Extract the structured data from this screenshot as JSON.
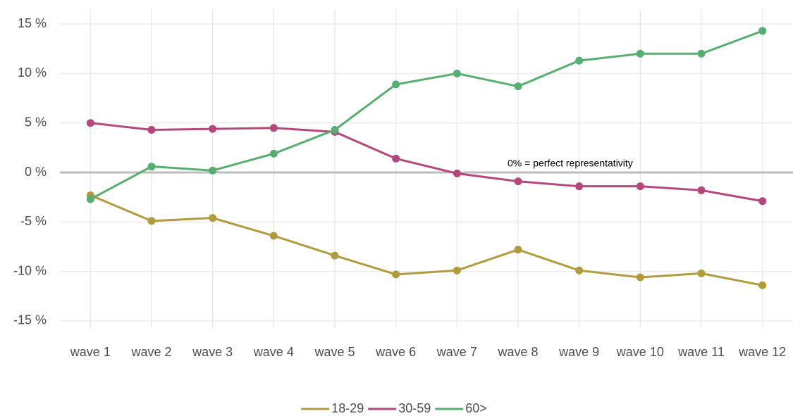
{
  "chart_data": {
    "type": "line",
    "categories": [
      "wave 1",
      "wave 2",
      "wave 3",
      "wave 4",
      "wave 5",
      "wave 6",
      "wave 7",
      "wave 8",
      "wave 9",
      "wave 10",
      "wave 11",
      "wave 12"
    ],
    "series": [
      {
        "name": "18-29",
        "color": "#b19b3d",
        "values": [
          -2.3,
          -4.9,
          -4.6,
          -6.4,
          -8.4,
          -10.3,
          -9.9,
          -7.8,
          -9.9,
          -10.6,
          -10.2,
          -11.4
        ]
      },
      {
        "name": "30-59",
        "color": "#b4477b",
        "values": [
          5.0,
          4.3,
          4.4,
          4.5,
          4.1,
          1.4,
          -0.1,
          -0.9,
          -1.4,
          -1.4,
          -1.8,
          -2.9
        ]
      },
      {
        "name": "60>",
        "color": "#56af71",
        "values": [
          -2.7,
          0.6,
          0.2,
          1.9,
          4.3,
          8.9,
          10.0,
          8.7,
          11.3,
          12.0,
          12.0,
          14.3
        ]
      }
    ],
    "annotation": "0% = perfect representativity",
    "ylim": [
      -16.5,
      16.5
    ],
    "yticks": [
      {
        "value": -15,
        "label": "-15 %"
      },
      {
        "value": -10,
        "label": "-10 %"
      },
      {
        "value": -5,
        "label": "-5 %"
      },
      {
        "value": 0,
        "label": "0 %"
      },
      {
        "value": 5,
        "label": "5 %"
      },
      {
        "value": 10,
        "label": "10 %"
      },
      {
        "value": 15,
        "label": "15 %"
      }
    ],
    "grid": true,
    "legend": "bottom"
  }
}
